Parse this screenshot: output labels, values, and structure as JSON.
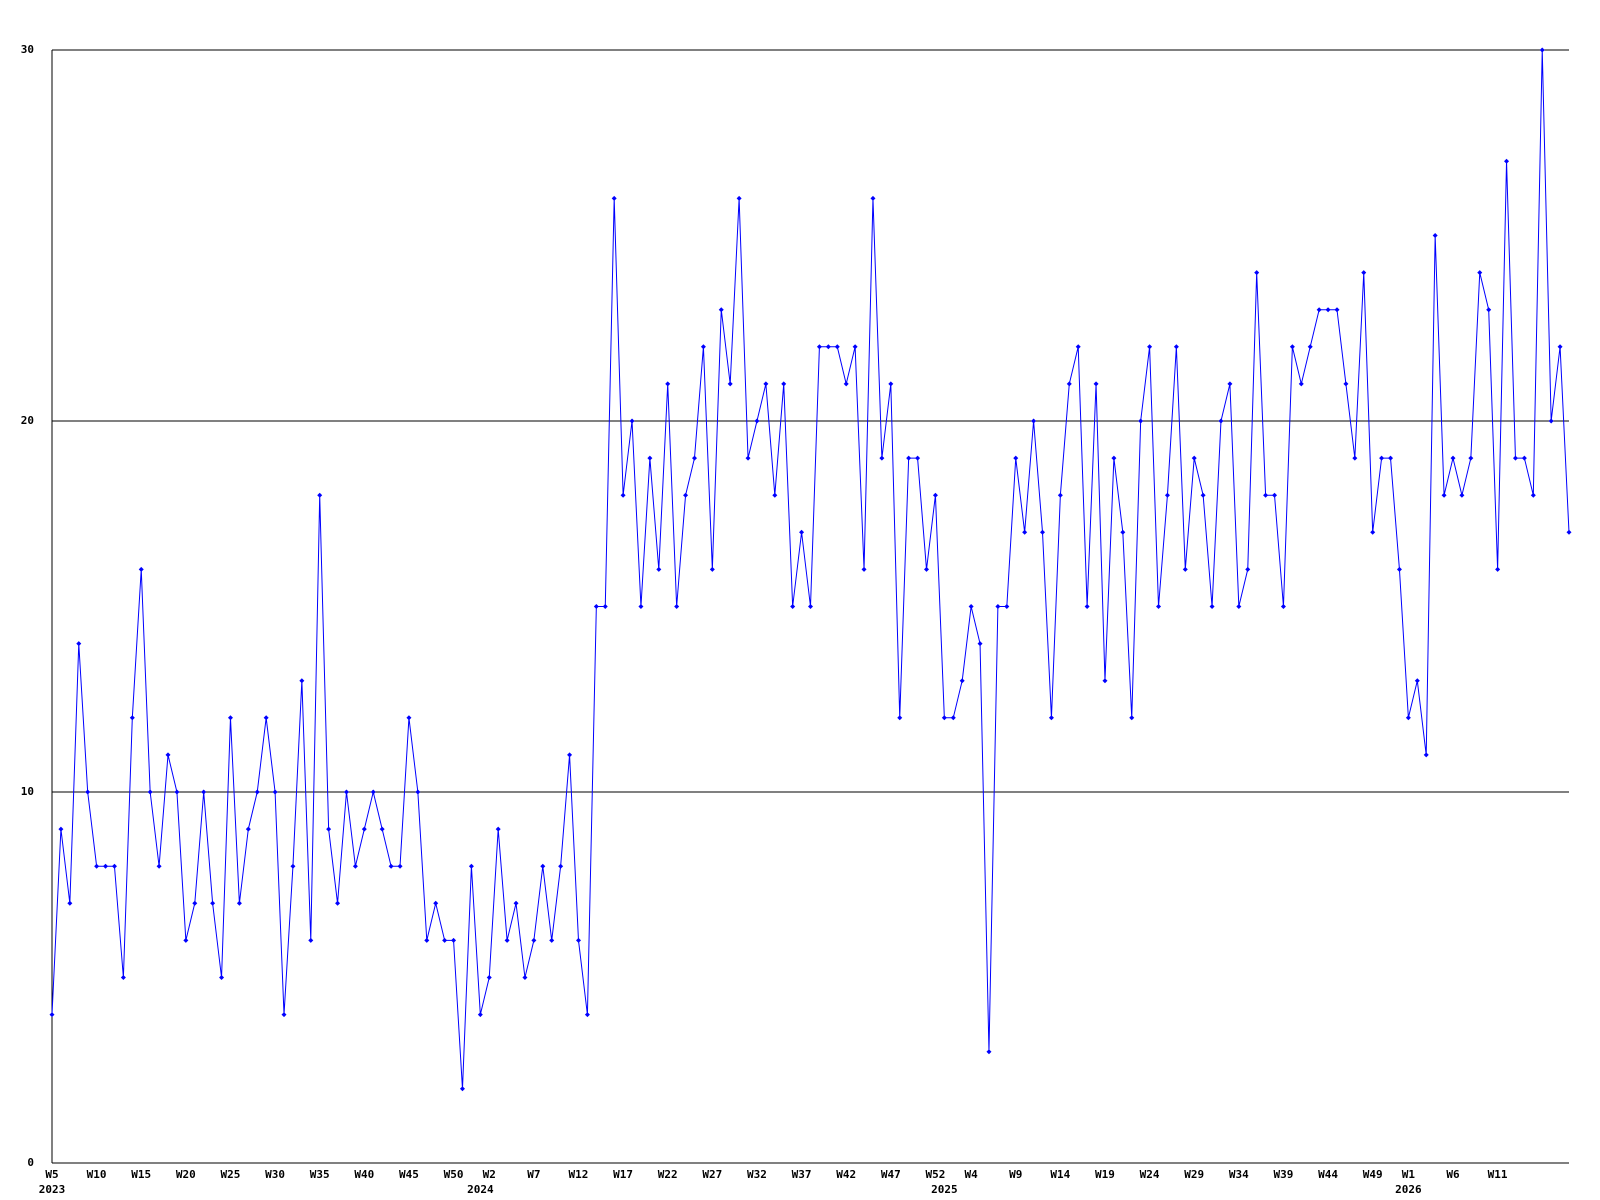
{
  "chart_data": {
    "type": "line",
    "color": "#0000ff",
    "grid": true,
    "ylim": [
      0,
      30
    ],
    "yticks": [
      0,
      10,
      20,
      30
    ],
    "categories": [
      {
        "week": "W5",
        "year": "2023"
      },
      null,
      null,
      null,
      null,
      {
        "week": "W10"
      },
      null,
      null,
      null,
      null,
      {
        "week": "W15"
      },
      null,
      null,
      null,
      null,
      {
        "week": "W20"
      },
      null,
      null,
      null,
      null,
      {
        "week": "W25"
      },
      null,
      null,
      null,
      null,
      {
        "week": "W30"
      },
      null,
      null,
      null,
      null,
      {
        "week": "W35"
      },
      null,
      null,
      null,
      null,
      {
        "week": "W40"
      },
      null,
      null,
      null,
      null,
      {
        "week": "W45"
      },
      null,
      null,
      null,
      null,
      {
        "week": "W50"
      },
      null,
      null,
      {
        "year": "2024"
      },
      {
        "week": "W2"
      },
      null,
      null,
      null,
      null,
      {
        "week": "W7"
      },
      null,
      null,
      null,
      null,
      {
        "week": "W12"
      },
      null,
      null,
      null,
      null,
      {
        "week": "W17"
      },
      null,
      null,
      null,
      null,
      {
        "week": "W22"
      },
      null,
      null,
      null,
      null,
      {
        "week": "W27"
      },
      null,
      null,
      null,
      null,
      {
        "week": "W32"
      },
      null,
      null,
      null,
      null,
      {
        "week": "W37"
      },
      null,
      null,
      null,
      null,
      {
        "week": "W42"
      },
      null,
      null,
      null,
      null,
      {
        "week": "W47"
      },
      null,
      null,
      null,
      null,
      {
        "week": "W52"
      },
      {
        "year": "2025"
      },
      null,
      null,
      {
        "week": "W4"
      },
      null,
      null,
      null,
      null,
      {
        "week": "W9"
      },
      null,
      null,
      null,
      null,
      {
        "week": "W14"
      },
      null,
      null,
      null,
      null,
      {
        "week": "W19"
      },
      null,
      null,
      null,
      null,
      {
        "week": "W24"
      },
      null,
      null,
      null,
      null,
      {
        "week": "W29"
      },
      null,
      null,
      null,
      null,
      {
        "week": "W34"
      },
      null,
      null,
      null,
      null,
      {
        "week": "W39"
      },
      null,
      null,
      null,
      null,
      {
        "week": "W44"
      },
      null,
      null,
      null,
      null,
      {
        "week": "W49"
      },
      null,
      null,
      null,
      {
        "week": "W1",
        "year": "2026"
      },
      null,
      null,
      null,
      null,
      {
        "week": "W6"
      },
      null,
      null,
      null,
      null,
      {
        "week": "W11"
      },
      null,
      null,
      null,
      null,
      null,
      null,
      null,
      null
    ],
    "values": [
      4,
      9,
      7,
      14,
      10,
      8,
      8,
      8,
      5,
      12,
      16,
      10,
      8,
      11,
      10,
      6,
      7,
      10,
      7,
      5,
      12,
      7,
      9,
      10,
      12,
      10,
      4,
      8,
      13,
      6,
      18,
      9,
      7,
      10,
      8,
      9,
      10,
      9,
      8,
      8,
      12,
      10,
      6,
      7,
      6,
      6,
      2,
      8,
      4,
      5,
      9,
      6,
      7,
      5,
      6,
      8,
      6,
      8,
      11,
      6,
      4,
      15,
      15,
      26,
      18,
      20,
      15,
      19,
      16,
      21,
      15,
      18,
      19,
      22,
      16,
      23,
      21,
      26,
      19,
      20,
      21,
      18,
      21,
      15,
      17,
      15,
      22,
      22,
      22,
      21,
      22,
      16,
      26,
      19,
      21,
      12,
      19,
      19,
      16,
      18,
      12,
      12,
      13,
      15,
      14,
      3,
      15,
      15,
      19,
      17,
      20,
      17,
      12,
      18,
      21,
      22,
      15,
      21,
      13,
      19,
      17,
      12,
      20,
      22,
      15,
      18,
      22,
      16,
      19,
      18,
      15,
      20,
      21,
      15,
      16,
      24,
      18,
      18,
      15,
      22,
      21,
      22,
      23,
      23,
      23,
      21,
      19,
      24,
      17,
      19,
      19,
      16,
      12,
      13,
      11,
      25,
      18,
      19,
      18,
      19,
      24,
      23,
      16,
      27,
      19,
      19,
      18,
      30,
      20,
      22,
      17
    ]
  }
}
